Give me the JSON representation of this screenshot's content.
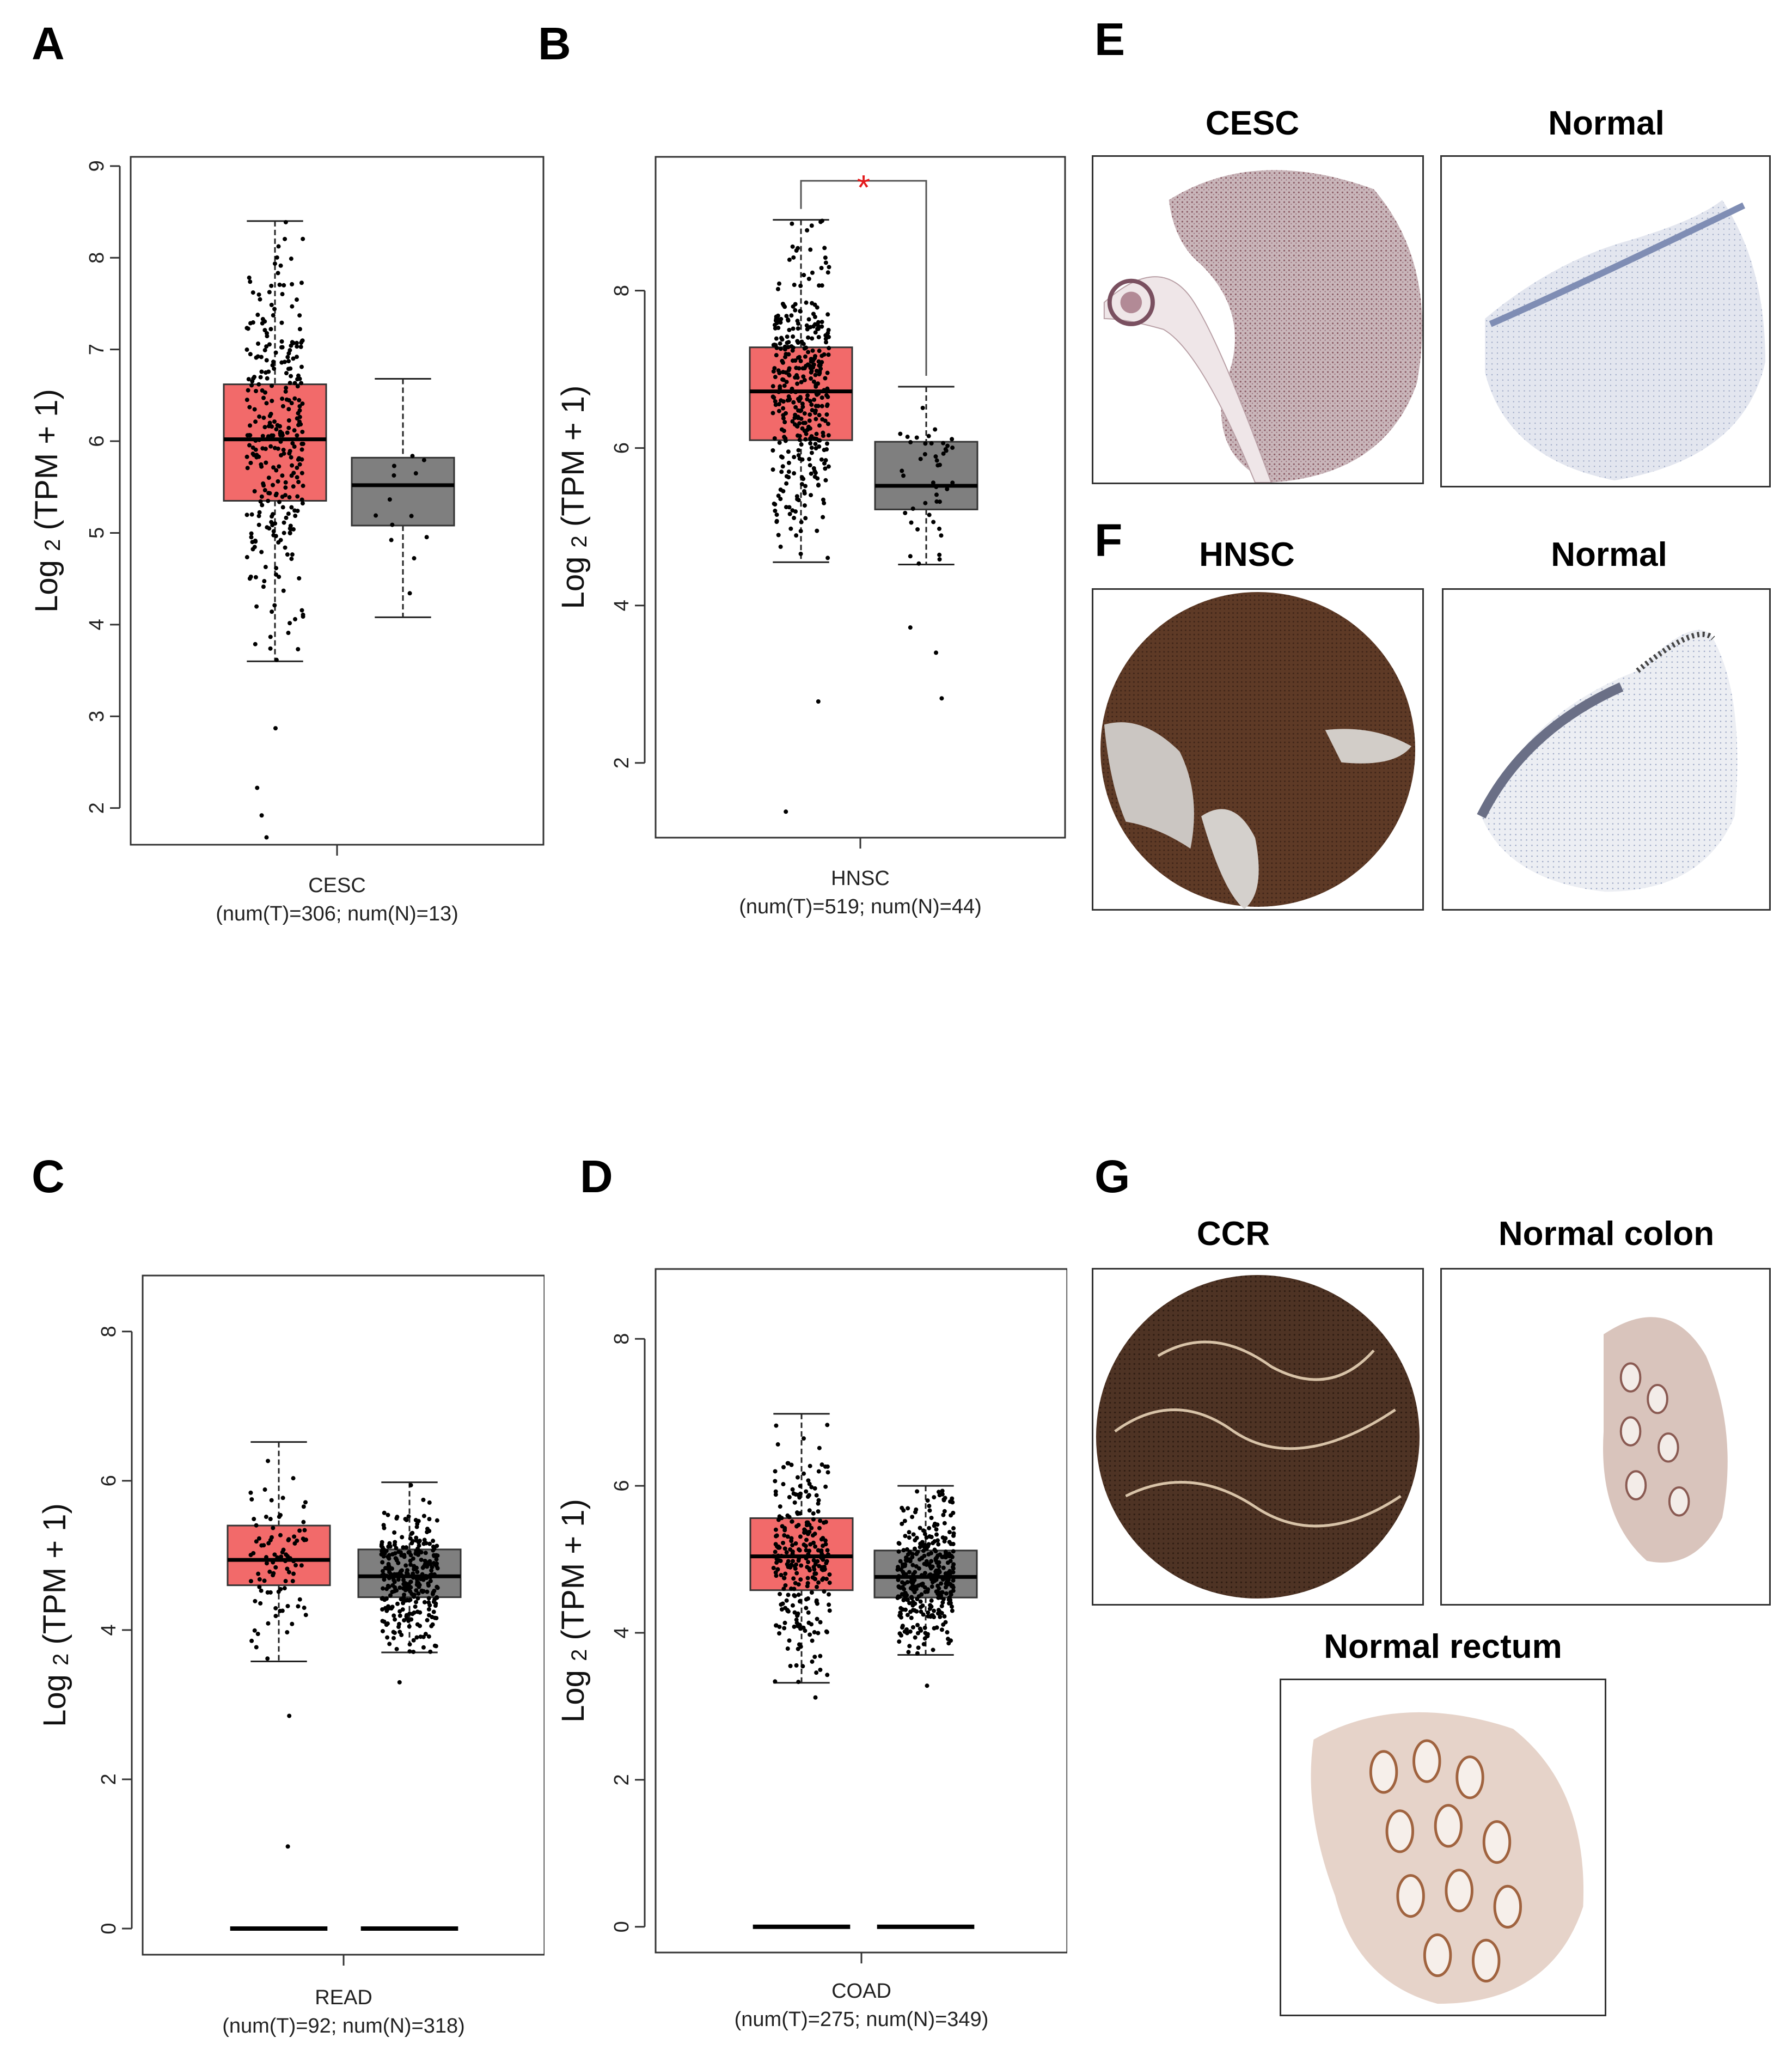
{
  "panel_letters": {
    "a": "A",
    "b": "B",
    "c": "C",
    "d": "D",
    "e": "E",
    "f": "F",
    "g": "G"
  },
  "colors": {
    "tumor": "#f26a6a",
    "normal": "#7f7f7f",
    "median": "#000000",
    "significance": "#e31a1c",
    "nucleus_stain": "#8a5a52",
    "dab_stain": "#5a3420",
    "hematoxylin": "#9aa6c4"
  },
  "tissue": {
    "cesc_title": "CESC",
    "cesc_normal_title": "Normal",
    "hnsc_title": "HNSC",
    "hnsc_normal_title": "Normal",
    "ccr_title": "CCR",
    "normal_colon_title": "Normal colon",
    "normal_rectum_title": "Normal rectum"
  },
  "chart_data": [
    {
      "type": "box",
      "panel": "A",
      "ylabel_base": "Log",
      "ylabel_sub": "2",
      "ylabel_rest": "(TPM + 1)",
      "xlabel": "CESC",
      "xsublabel": "(num(T)=306; num(N)=13)",
      "ylim": [
        1.6,
        9.1
      ],
      "yticks": [
        "2",
        "3",
        "4",
        "5",
        "6",
        "7",
        "8",
        "9"
      ],
      "significance": "",
      "series": [
        {
          "group": "T",
          "n": 306,
          "min": 3.6,
          "q1": 5.35,
          "median": 6.02,
          "q3": 6.62,
          "max": 8.4,
          "outliers_low": [
            2.87,
            2.22,
            1.92,
            1.68
          ]
        },
        {
          "group": "N",
          "n": 13,
          "min": 4.08,
          "q1": 5.08,
          "median": 5.52,
          "q3": 5.82,
          "max": 6.68,
          "outliers_low": []
        }
      ]
    },
    {
      "type": "box",
      "panel": "B",
      "ylabel_base": "Log",
      "ylabel_sub": "2",
      "ylabel_rest": "(TPM + 1)",
      "xlabel": "HNSC",
      "xsublabel": "(num(T)=519; num(N)=44)",
      "ylim": [
        1.05,
        9.7
      ],
      "yticks": [
        "2",
        "4",
        "6",
        "8"
      ],
      "significance": "*",
      "series": [
        {
          "group": "T",
          "n": 519,
          "min": 4.55,
          "q1": 6.1,
          "median": 6.72,
          "q3": 7.28,
          "max": 8.9,
          "outliers_low": [
            2.78,
            1.38
          ]
        },
        {
          "group": "N",
          "n": 44,
          "min": 4.52,
          "q1": 5.22,
          "median": 5.52,
          "q3": 6.08,
          "max": 6.78,
          "outliers_low": [
            3.72,
            3.4,
            2.82
          ]
        }
      ]
    },
    {
      "type": "box",
      "panel": "C",
      "ylabel_base": "Log",
      "ylabel_sub": "2",
      "ylabel_rest": "(TPM + 1)",
      "xlabel": "READ",
      "xsublabel": "(num(T)=92; num(N)=318)",
      "ylim": [
        -0.35,
        8.75
      ],
      "yticks": [
        "0",
        "2",
        "4",
        "6",
        "8"
      ],
      "significance": "",
      "series": [
        {
          "group": "T",
          "n": 92,
          "min": 3.58,
          "q1": 4.6,
          "median": 4.94,
          "q3": 5.4,
          "max": 6.52,
          "outliers_low": [
            2.85,
            1.1
          ]
        },
        {
          "group": "N",
          "n": 318,
          "min": 3.7,
          "q1": 4.44,
          "median": 4.72,
          "q3": 5.08,
          "max": 5.98,
          "outliers_low": [
            3.3
          ]
        }
      ]
    },
    {
      "type": "box",
      "panel": "D",
      "ylabel_base": "Log",
      "ylabel_sub": "2",
      "ylabel_rest": "(TPM + 1)",
      "xlabel": "COAD",
      "xsublabel": "(num(T)=275; num(N)=349)",
      "ylim": [
        -0.35,
        8.95
      ],
      "yticks": [
        "0",
        "2",
        "4",
        "6",
        "8"
      ],
      "significance": "",
      "series": [
        {
          "group": "T",
          "n": 275,
          "min": 3.32,
          "q1": 4.58,
          "median": 5.04,
          "q3": 5.56,
          "max": 6.98,
          "outliers_low": [
            3.12
          ]
        },
        {
          "group": "N",
          "n": 349,
          "min": 3.7,
          "q1": 4.48,
          "median": 4.76,
          "q3": 5.12,
          "max": 6.0,
          "outliers_low": [
            3.28
          ]
        }
      ]
    }
  ]
}
